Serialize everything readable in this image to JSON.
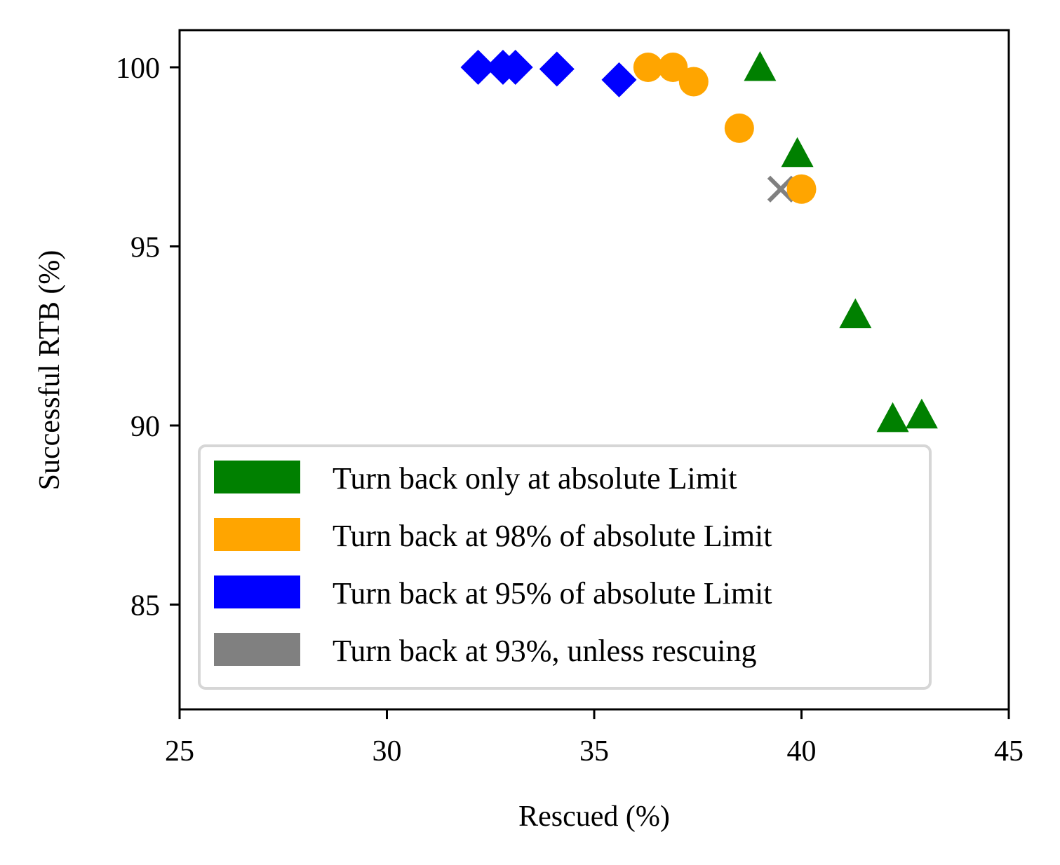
{
  "chart_data": {
    "type": "scatter",
    "title": "",
    "xlabel": "Rescued (%)",
    "ylabel": "Successful RTB (%)",
    "xlim": [
      25,
      45
    ],
    "ylim": [
      82,
      101
    ],
    "xticks": [
      "25",
      "30",
      "35",
      "40",
      "45"
    ],
    "yticks": [
      "85",
      "90",
      "95",
      "100"
    ],
    "legend_position": "lower-left",
    "series": [
      {
        "name": "Turn back only at absolute Limit",
        "color": "#008000",
        "marker": "triangle",
        "points": [
          [
            39.0,
            100.0
          ],
          [
            39.9,
            97.6
          ],
          [
            41.3,
            93.1
          ],
          [
            42.2,
            90.2
          ],
          [
            42.9,
            90.3
          ]
        ]
      },
      {
        "name": "Turn back at 98% of absolute Limit",
        "color": "#FFA500",
        "marker": "circle",
        "points": [
          [
            36.3,
            100.0
          ],
          [
            36.9,
            100.0
          ],
          [
            37.4,
            99.6
          ],
          [
            38.5,
            98.3
          ],
          [
            40.0,
            96.6
          ]
        ]
      },
      {
        "name": "Turn back at 95% of absolute Limit",
        "color": "#0000FF",
        "marker": "diamond",
        "points": [
          [
            32.2,
            100.0
          ],
          [
            32.8,
            100.0
          ],
          [
            33.1,
            100.0
          ],
          [
            34.1,
            99.95
          ],
          [
            35.6,
            99.65
          ]
        ]
      },
      {
        "name": "Turn back at 93%, unless rescuing",
        "color": "#808080",
        "marker": "x",
        "points": [
          [
            39.5,
            96.6
          ]
        ]
      }
    ]
  }
}
